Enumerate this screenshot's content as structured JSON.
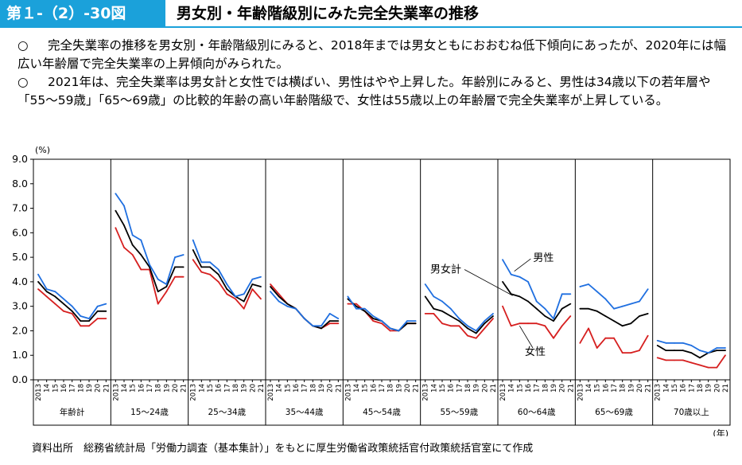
{
  "header": {
    "figure_number": "第１-（2）-30図",
    "title": "男女別・年齢階級別にみた完全失業率の推移",
    "accent_color": "#1ba1da"
  },
  "bullets": [
    {
      "mark": "○",
      "text": "完全失業率の推移を男女別・年齢階級別にみると、2018年までは男女ともにおおむね低下傾向にあったが、2020年には幅広い年齢層で完全失業率の上昇傾向がみられた。"
    },
    {
      "mark": "○",
      "text": "2021年は、完全失業率は男女計と女性では横ばい、男性はやや上昇した。年齢別にみると、男性は34歳以下の若年層や「55～59歳」「65～69歳」の比較的年齢の高い年齢階級で、女性は55歳以上の年齢層で完全失業率が上昇している。"
    }
  ],
  "source": "資料出所　総務省統計局「労働力調査（基本集計）」をもとに厚生労働省政策統括官付政策統括官室にて作成",
  "chart_data": {
    "type": "line",
    "yunit": "(%)",
    "xunit": "(年)",
    "ylim": [
      0,
      9
    ],
    "yticks": [
      "0.0",
      "1.0",
      "2.0",
      "3.0",
      "4.0",
      "5.0",
      "6.0",
      "7.0",
      "8.0",
      "9.0"
    ],
    "x": [
      "2013",
      "14",
      "15",
      "16",
      "17",
      "18",
      "19",
      "20",
      "21"
    ],
    "series_colors": {
      "total": "#000000",
      "male": "#1f6fe0",
      "female": "#d61f1f"
    },
    "annotations": {
      "total": "男女計",
      "male": "男性",
      "female": "女性"
    },
    "panels": [
      {
        "label": "年齢計",
        "total": [
          4.0,
          3.6,
          3.4,
          3.1,
          2.8,
          2.4,
          2.4,
          2.8,
          2.8
        ],
        "male": [
          4.3,
          3.7,
          3.6,
          3.3,
          3.0,
          2.6,
          2.5,
          3.0,
          3.1
        ],
        "female": [
          3.7,
          3.4,
          3.1,
          2.8,
          2.7,
          2.2,
          2.2,
          2.5,
          2.5
        ]
      },
      {
        "label": "15～24歳",
        "total": [
          6.9,
          6.3,
          5.5,
          5.1,
          4.6,
          3.6,
          3.8,
          4.6,
          4.6
        ],
        "male": [
          7.6,
          7.1,
          5.9,
          5.7,
          4.7,
          4.1,
          3.9,
          5.0,
          5.1
        ],
        "female": [
          6.2,
          5.4,
          5.1,
          4.5,
          4.5,
          3.1,
          3.6,
          4.2,
          4.2
        ]
      },
      {
        "label": "25～34歳",
        "total": [
          5.3,
          4.6,
          4.6,
          4.3,
          3.7,
          3.4,
          3.2,
          3.9,
          3.8
        ],
        "male": [
          5.7,
          4.8,
          4.8,
          4.5,
          3.9,
          3.4,
          3.5,
          4.1,
          4.2
        ],
        "female": [
          4.9,
          4.4,
          4.3,
          4.0,
          3.5,
          3.3,
          2.9,
          3.7,
          3.3
        ]
      },
      {
        "label": "35～44歳",
        "total": [
          3.8,
          3.4,
          3.1,
          2.9,
          2.5,
          2.2,
          2.1,
          2.4,
          2.4
        ],
        "male": [
          3.6,
          3.2,
          3.0,
          2.9,
          2.5,
          2.2,
          2.2,
          2.7,
          2.5
        ],
        "female": [
          3.9,
          3.5,
          3.1,
          2.9,
          2.5,
          2.2,
          2.1,
          2.3,
          2.3
        ]
      },
      {
        "label": "45～54歳",
        "total": [
          3.3,
          3.0,
          2.8,
          2.5,
          2.4,
          2.1,
          2.0,
          2.3,
          2.3
        ],
        "male": [
          3.4,
          2.9,
          2.9,
          2.6,
          2.4,
          2.1,
          2.0,
          2.4,
          2.4
        ],
        "female": [
          3.1,
          3.1,
          2.8,
          2.4,
          2.3,
          2.0,
          2.0,
          2.3,
          2.3
        ]
      },
      {
        "label": "55～59歳",
        "total": [
          3.4,
          2.9,
          2.8,
          2.6,
          2.4,
          2.1,
          1.9,
          2.3,
          2.6
        ],
        "male": [
          3.9,
          3.4,
          3.2,
          2.9,
          2.5,
          2.2,
          2.0,
          2.4,
          2.7
        ],
        "female": [
          2.7,
          2.7,
          2.3,
          2.2,
          2.2,
          1.8,
          1.7,
          2.1,
          2.5
        ]
      },
      {
        "label": "60～64歳",
        "total": [
          4.0,
          3.5,
          3.4,
          3.2,
          2.9,
          2.6,
          2.4,
          2.9,
          3.1
        ],
        "male": [
          4.9,
          4.3,
          4.2,
          4.0,
          3.2,
          2.9,
          2.5,
          3.5,
          3.5
        ],
        "female": [
          3.0,
          2.2,
          2.3,
          2.3,
          2.3,
          2.2,
          1.7,
          2.2,
          2.6
        ]
      },
      {
        "label": "65～69歳",
        "total": [
          2.9,
          2.9,
          2.8,
          2.6,
          2.4,
          2.2,
          2.3,
          2.6,
          2.7
        ],
        "male": [
          3.8,
          3.9,
          3.6,
          3.3,
          2.9,
          3.0,
          3.1,
          3.2,
          3.7
        ],
        "female": [
          1.5,
          2.1,
          1.3,
          1.7,
          1.7,
          1.1,
          1.1,
          1.2,
          1.8
        ]
      },
      {
        "label": "70歳以上",
        "total": [
          1.4,
          1.2,
          1.2,
          1.2,
          1.1,
          0.9,
          1.1,
          1.2,
          1.2
        ],
        "male": [
          1.6,
          1.5,
          1.5,
          1.5,
          1.4,
          1.2,
          1.1,
          1.3,
          1.3
        ],
        "female": [
          0.9,
          0.8,
          0.8,
          0.8,
          0.7,
          0.6,
          0.5,
          0.5,
          1.0
        ]
      }
    ]
  }
}
